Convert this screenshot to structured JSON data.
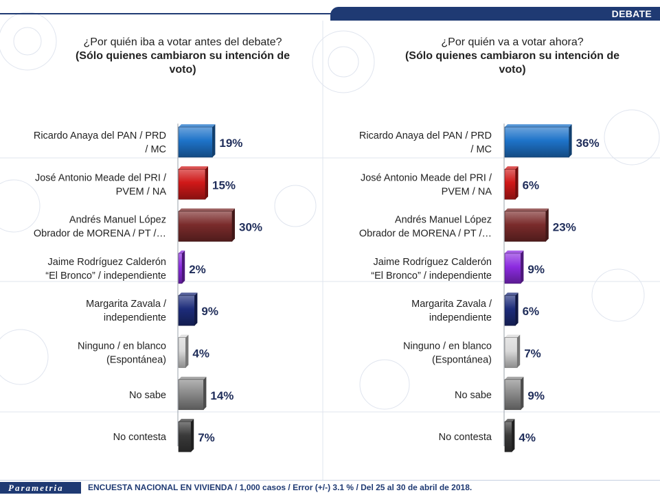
{
  "header": {
    "tag": "DEBATE"
  },
  "footer": {
    "logo": "Parametria",
    "note": "ENCUESTA NACIONAL EN VIVIENDA / 1,000 casos / Error (+/-) 3.1 % / Del 25 al 30 de abril de 2018."
  },
  "colors": {
    "anaya": "#1e73c9",
    "meade": "#d01818",
    "amlo": "#7a2b2b",
    "bronco": "#8c2be0",
    "zavala": "#1d2c7a",
    "ninguno": "#d9d9d9",
    "nosabe": "#8a8a8a",
    "nocontesta": "#3a3a3a",
    "value_text": "#1f2d5a",
    "title_text": "#222222"
  },
  "chart_data": [
    {
      "type": "bar",
      "orientation": "horizontal",
      "title": "¿Por quién iba a votar antes del debate?",
      "subtitle": "(Sólo quienes cambiaron su intención de voto)",
      "categories": [
        [
          "Ricardo Anaya del PAN / PRD",
          "/ MC"
        ],
        [
          "José Antonio Meade del PRI /",
          "PVEM / NA"
        ],
        [
          "Andrés Manuel López",
          "Obrador de MORENA / PT /…"
        ],
        [
          "Jaime Rodríguez Calderón",
          "“El Bronco” / independiente"
        ],
        [
          "Margarita Zavala /",
          "independiente"
        ],
        [
          "Ninguno / en blanco",
          "(Espontánea)"
        ],
        [
          "No sabe"
        ],
        [
          "No contesta"
        ]
      ],
      "values": [
        19,
        15,
        30,
        2,
        9,
        4,
        14,
        7
      ],
      "value_labels": [
        "19%",
        "15%",
        "30%",
        "2%",
        "9%",
        "4%",
        "14%",
        "7%"
      ],
      "color_keys": [
        "anaya",
        "meade",
        "amlo",
        "bronco",
        "zavala",
        "ninguno",
        "nosabe",
        "nocontesta"
      ],
      "xlim": [
        0,
        100
      ]
    },
    {
      "type": "bar",
      "orientation": "horizontal",
      "title": "¿Por quién va a votar ahora?",
      "subtitle": "(Sólo quienes cambiaron su intención de voto)",
      "categories": [
        [
          "Ricardo Anaya del PAN / PRD",
          "/ MC"
        ],
        [
          "José Antonio Meade del PRI /",
          "PVEM / NA"
        ],
        [
          "Andrés Manuel López",
          "Obrador de MORENA / PT /…"
        ],
        [
          "Jaime Rodríguez Calderón",
          "“El Bronco” / independiente"
        ],
        [
          "Margarita Zavala /",
          "independiente"
        ],
        [
          "Ninguno / en blanco",
          "(Espontánea)"
        ],
        [
          "No sabe"
        ],
        [
          "No contesta"
        ]
      ],
      "values": [
        36,
        6,
        23,
        9,
        6,
        7,
        9,
        4
      ],
      "value_labels": [
        "36%",
        "6%",
        "23%",
        "9%",
        "6%",
        "7%",
        "9%",
        "4%"
      ],
      "color_keys": [
        "anaya",
        "meade",
        "amlo",
        "bronco",
        "zavala",
        "ninguno",
        "nosabe",
        "nocontesta"
      ],
      "xlim": [
        0,
        100
      ]
    }
  ]
}
